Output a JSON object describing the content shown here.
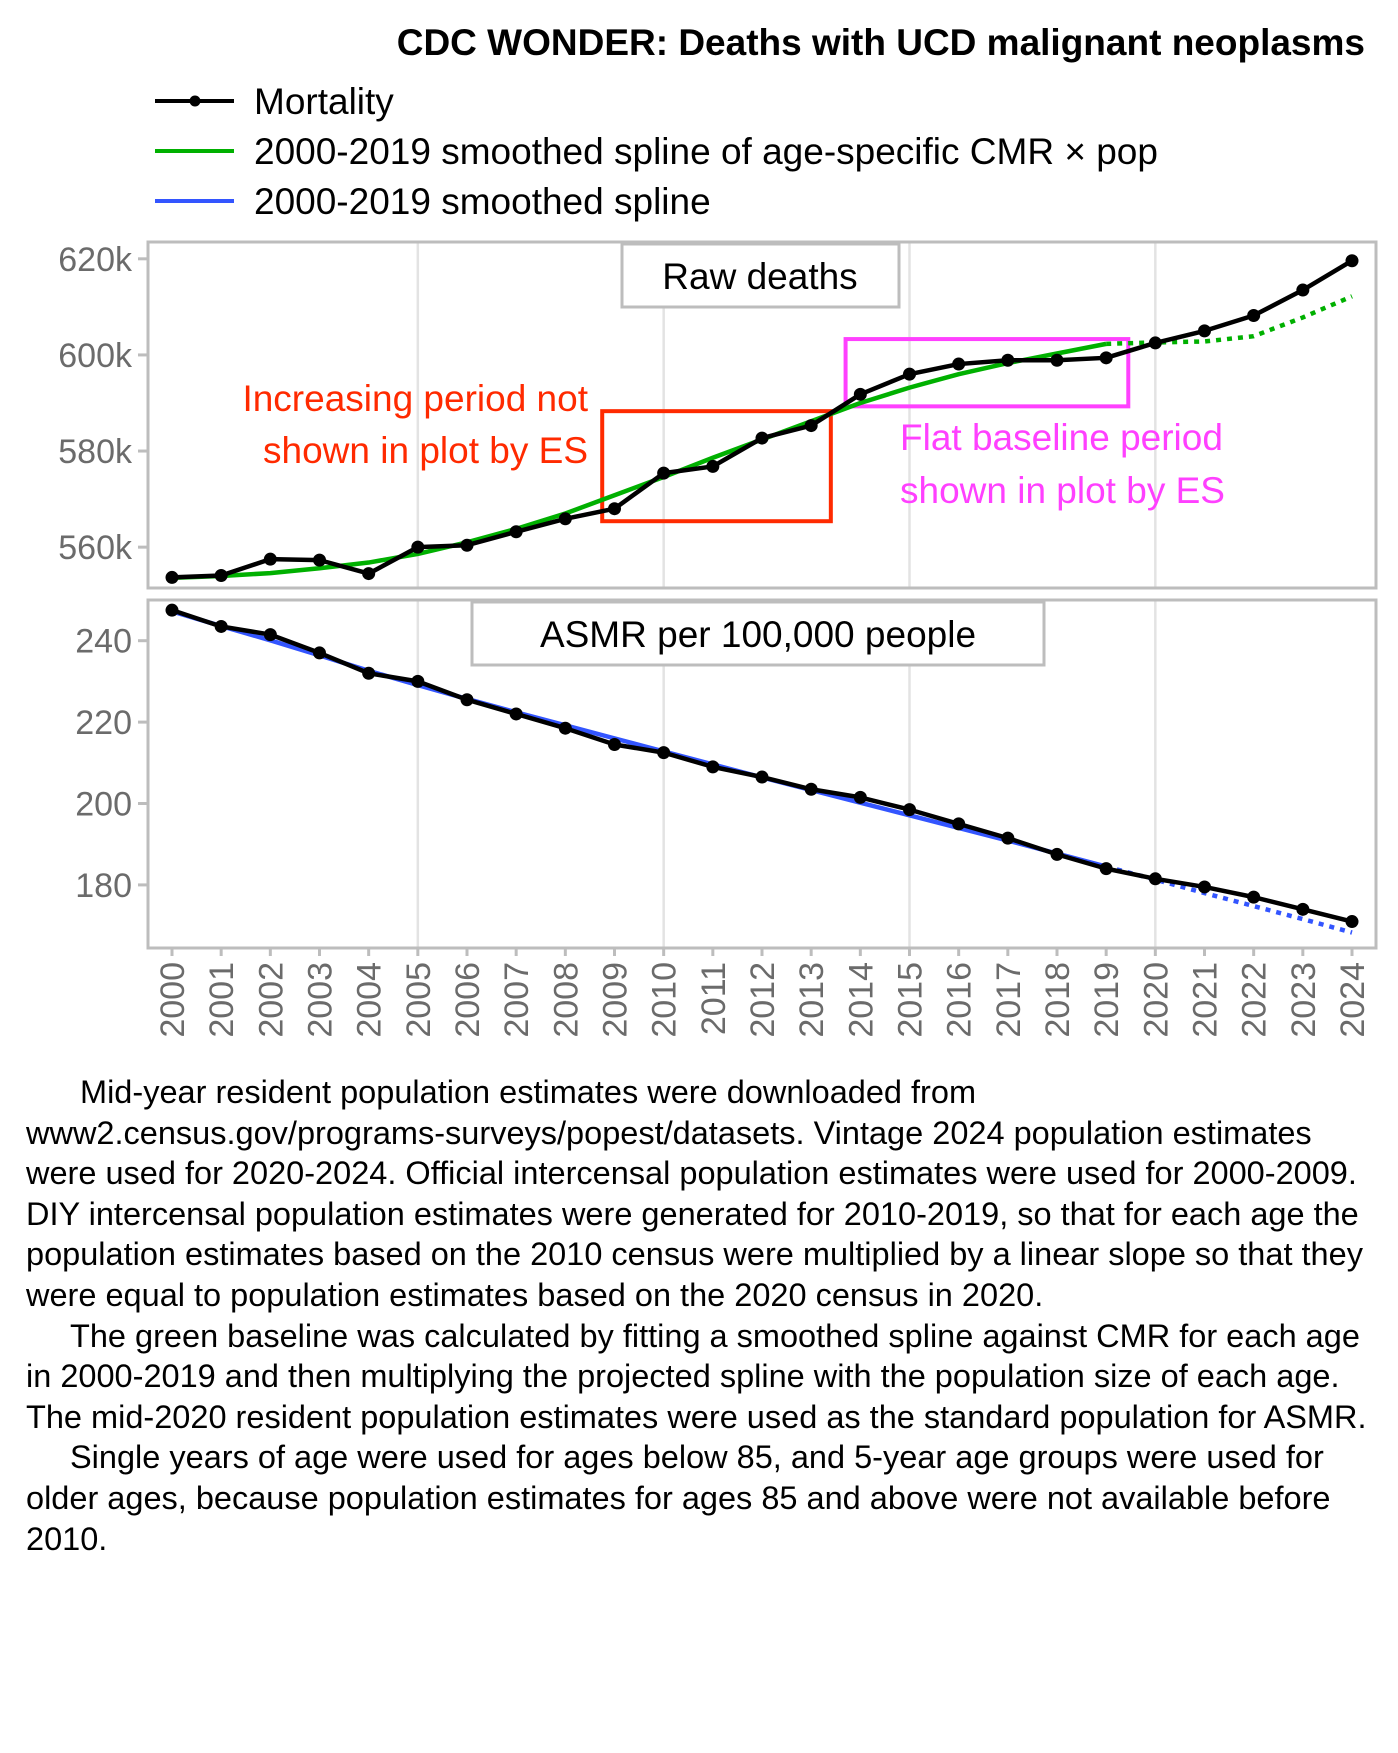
{
  "chart_data": {
    "type": "line",
    "title": "CDC WONDER: Deaths with UCD malignant neoplasms",
    "legend": {
      "placement": "top-left",
      "entries": [
        {
          "label": "Mortality",
          "color": "#000000",
          "style": "line-with-points"
        },
        {
          "label": "2000-2019 smoothed spline of age-specific CMR × pop",
          "color": "#00b000",
          "style": "line"
        },
        {
          "label": "2000-2019 smoothed spline",
          "color": "#3355ff",
          "style": "line"
        }
      ]
    },
    "x": [
      2000,
      2001,
      2002,
      2003,
      2004,
      2005,
      2006,
      2007,
      2008,
      2009,
      2010,
      2011,
      2012,
      2013,
      2014,
      2015,
      2016,
      2017,
      2018,
      2019,
      2020,
      2021,
      2022,
      2023,
      2024
    ],
    "x_tick_labels": [
      "2000",
      "2001",
      "2002",
      "2003",
      "2004",
      "2005",
      "2006",
      "2007",
      "2008",
      "2009",
      "2010",
      "2011",
      "2012",
      "2013",
      "2014",
      "2015",
      "2016",
      "2017",
      "2018",
      "2019",
      "2020",
      "2021",
      "2022",
      "2023",
      "2024"
    ],
    "xlim": [
      2000,
      2024
    ],
    "grid": true,
    "baseline_fit_end": 2019,
    "panels": [
      {
        "strip_label": "Raw deaths",
        "ylim": [
          551500,
          623500
        ],
        "y_ticks": [
          560000,
          580000,
          600000,
          620000
        ],
        "y_tick_labels": [
          "560k",
          "580k",
          "600k",
          "620k"
        ],
        "series": [
          {
            "name": "Mortality",
            "color": "#000000",
            "values": [
              553700,
              554100,
              557500,
              557300,
              554500,
              560000,
              560400,
              563200,
              565900,
              568000,
              575400,
              576800,
              582700,
              585300,
              591800,
              596000,
              598100,
              598900,
              598900,
              599400,
              602500,
              605000,
              608200,
              613500,
              619600
            ]
          },
          {
            "name": "2000-2019 smoothed spline of age-specific CMR × pop",
            "color": "#00b000",
            "values": [
              553600,
              554000,
              554600,
              555600,
              556800,
              558600,
              561000,
              563800,
              567000,
              570800,
              574600,
              578600,
              582400,
              586200,
              590000,
              593200,
              596000,
              598300,
              600300,
              602300,
              602600,
              602800,
              603900,
              607800,
              612200
            ]
          }
        ],
        "annotations": [
          {
            "text_lines": [
              "Increasing period not",
              "shown in plot by ES"
            ],
            "color": "#ff2a00",
            "box_x_range": [
              2008.75,
              2013.4
            ],
            "box_y_range": [
              565400,
              588300
            ]
          },
          {
            "text_lines": [
              "Flat baseline period",
              "shown in plot by ES"
            ],
            "color": "#ff40ff",
            "box_x_range": [
              2013.7,
              2019.45
            ],
            "box_y_range": [
              589300,
              603300
            ]
          }
        ]
      },
      {
        "strip_label": "ASMR per 100,000 people",
        "ylim": [
          164.5,
          250
        ],
        "y_ticks": [
          180,
          200,
          220,
          240
        ],
        "y_tick_labels": [
          "180",
          "200",
          "220",
          "240"
        ],
        "series": [
          {
            "name": "Mortality",
            "color": "#000000",
            "values": [
              247.5,
              243.5,
              241.5,
              237,
              232,
              230,
              225.5,
              222,
              218.5,
              214.5,
              212.5,
              209,
              206.5,
              203.5,
              201.5,
              198.5,
              195,
              191.5,
              187.5,
              184,
              181.5,
              179.5,
              177,
              174,
              171
            ]
          },
          {
            "name": "2000-2019 smoothed spline",
            "color": "#3355ff",
            "values": [
              247.2,
              243.6,
              240.1,
              236.4,
              232.6,
              229.1,
              225.7,
              222.4,
              219.2,
              216,
              212.8,
              209.6,
              206.4,
              203.3,
              200.2,
              197.1,
              194,
              190.9,
              187.7,
              184.5,
              181.3,
              178,
              174.8,
              171.6,
              168.3
            ]
          }
        ]
      }
    ]
  },
  "footnote": {
    "paragraphs": [
      "Mid-year resident population estimates were downloaded from www2.census.gov/programs-surveys/popest/datasets. Vintage 2024 population estimates were used for 2020-2024. Official intercensal population estimates were used for 2000-2009. DIY intercensal population estimates were generated for 2010-2019, so that for each age the population estimates based on the 2010 census were multiplied by a linear slope so that they were equal to population estimates based on the 2020 census in 2020.",
      "The green baseline was calculated by fitting a smoothed spline against CMR for each age in 2000-2019 and then multiplying the projected spline with the population size of each age. The mid-2020 resident population estimates were used as the standard population for ASMR.",
      "Single years of age were used for ages below 85, and 5-year age groups were used for older ages, because population estimates for ages 85 and above were not available before 2010."
    ]
  }
}
